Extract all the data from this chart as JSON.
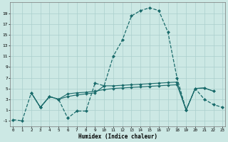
{
  "xlabel": "Humidex (Indice chaleur)",
  "background_color": "#cce8e4",
  "grid_color": "#aacfcc",
  "line_color": "#1a6b6b",
  "line1_x": [
    0,
    1,
    2,
    3,
    4,
    5,
    6,
    7,
    8,
    9,
    10,
    11,
    12,
    13,
    14,
    15,
    16,
    17,
    18,
    19,
    20,
    21,
    22,
    23
  ],
  "line1_y": [
    -0.8,
    -1.0,
    4.2,
    1.5,
    3.5,
    3.0,
    -0.5,
    0.8,
    0.8,
    6.0,
    5.5,
    11.0,
    14.0,
    18.5,
    19.5,
    20.0,
    19.5,
    15.5,
    7.0,
    1.0,
    5.0,
    3.0,
    2.0,
    1.5
  ],
  "line2_x": [
    2,
    3,
    4,
    5,
    6,
    7,
    8,
    9,
    10,
    11,
    12,
    13,
    14,
    15,
    16,
    17,
    18,
    19,
    20,
    21,
    22
  ],
  "line2_y": [
    4.2,
    1.5,
    3.5,
    3.0,
    4.0,
    4.2,
    4.3,
    4.5,
    4.8,
    5.0,
    5.1,
    5.2,
    5.3,
    5.4,
    5.5,
    5.6,
    5.7,
    1.0,
    5.0,
    5.1,
    4.5
  ],
  "line3_x": [
    2,
    3,
    4,
    5,
    6,
    7,
    8,
    9,
    10,
    11,
    12,
    13,
    14,
    15,
    16,
    17,
    18,
    19,
    20,
    21,
    22
  ],
  "line3_y": [
    4.2,
    1.5,
    3.5,
    3.0,
    3.5,
    3.8,
    4.0,
    4.2,
    5.5,
    5.5,
    5.6,
    5.7,
    5.8,
    5.9,
    6.0,
    6.1,
    6.2,
    1.0,
    5.0,
    5.1,
    4.5
  ],
  "ylim": [
    -2.0,
    21.0
  ],
  "xlim": [
    -0.3,
    23.3
  ],
  "yticks": [
    -1,
    1,
    3,
    5,
    7,
    9,
    11,
    13,
    15,
    17,
    19
  ],
  "xticks": [
    0,
    1,
    2,
    3,
    4,
    5,
    6,
    7,
    8,
    9,
    10,
    11,
    12,
    13,
    14,
    15,
    16,
    17,
    18,
    19,
    20,
    21,
    22,
    23
  ]
}
